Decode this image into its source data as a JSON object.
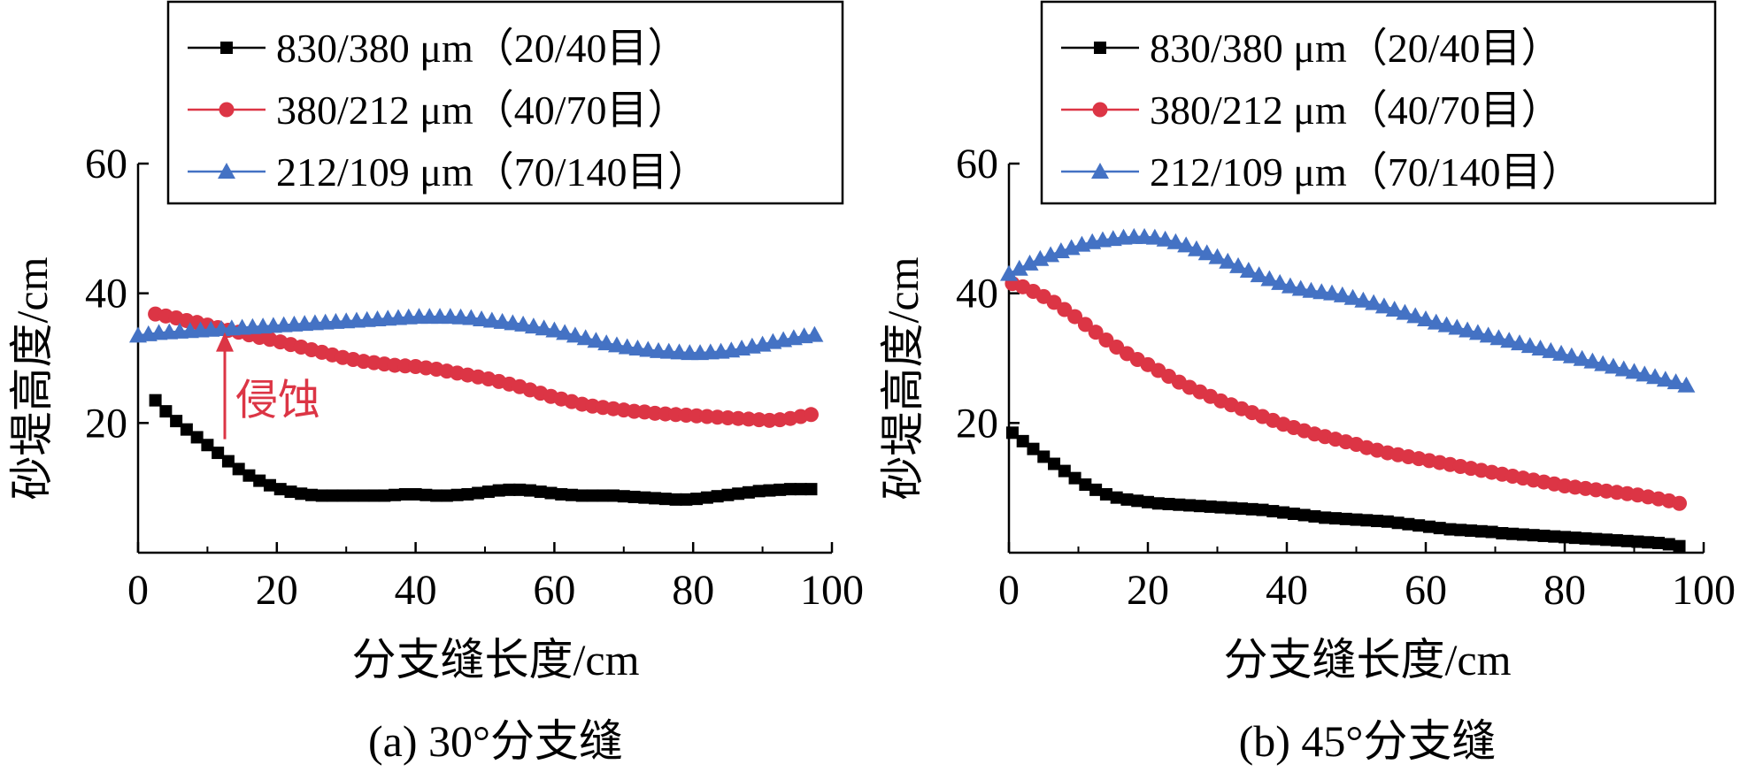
{
  "colors": {
    "series": [
      "#000000",
      "#dc3545",
      "#4472c4"
    ],
    "axis": "#000000",
    "annotation": "#dc3545"
  },
  "chart_data": [
    {
      "type": "line",
      "caption": "(a) 30°分支缝",
      "xlabel": "分支缝长度/cm",
      "ylabel": "砂堤高度/cm",
      "xlim": [
        0,
        100
      ],
      "ylim": [
        0,
        60
      ],
      "xticks": [
        0,
        20,
        40,
        60,
        80,
        100
      ],
      "yticks": [
        20,
        40,
        60
      ],
      "grid": false,
      "legend_position": "top-right",
      "annotation": {
        "text": "侵蚀",
        "x": 12.5,
        "y_from": 17.5,
        "y_to": 34
      },
      "series": [
        {
          "name": "830/380 μm（20/40目）",
          "marker": "square",
          "x": [
            2.5,
            4,
            5.5,
            7,
            8.5,
            10,
            11.5,
            13,
            14.5,
            16,
            17.5,
            19,
            20.5,
            22,
            23.5,
            25,
            26.5,
            28,
            29.5,
            31,
            32.5,
            34,
            35.5,
            37,
            38.5,
            40,
            41.5,
            43,
            44.5,
            46,
            47.5,
            49,
            50.5,
            52,
            53.5,
            55,
            56.5,
            58,
            59.5,
            61,
            62.5,
            64,
            65.5,
            67,
            68.5,
            70,
            71.5,
            73,
            74.5,
            76,
            77.5,
            79,
            80.5,
            82,
            83.5,
            85,
            86.5,
            88,
            89.5,
            91,
            92.5,
            94,
            95.5,
            97
          ],
          "y": [
            23.5,
            21.8,
            20.3,
            19,
            17.8,
            16.6,
            15.4,
            14.1,
            12.9,
            11.9,
            11.1,
            10.4,
            9.8,
            9.4,
            9.1,
            8.9,
            8.8,
            8.8,
            8.8,
            8.8,
            8.8,
            8.8,
            8.8,
            8.9,
            9,
            9,
            8.9,
            8.8,
            8.8,
            8.9,
            9,
            9.2,
            9.4,
            9.6,
            9.7,
            9.7,
            9.6,
            9.4,
            9.2,
            9,
            8.9,
            8.8,
            8.8,
            8.8,
            8.8,
            8.7,
            8.6,
            8.5,
            8.4,
            8.3,
            8.2,
            8.2,
            8.3,
            8.5,
            8.7,
            8.9,
            9.1,
            9.3,
            9.5,
            9.6,
            9.7,
            9.8,
            9.8,
            9.8
          ]
        },
        {
          "name": "380/212 μm（40/70目）",
          "marker": "circle",
          "x": [
            2.5,
            4,
            5.5,
            7,
            8.5,
            10,
            11.5,
            13,
            14.5,
            16,
            17.5,
            19,
            20.5,
            22,
            23.5,
            25,
            26.5,
            28,
            29.5,
            31,
            32.5,
            34,
            35.5,
            37,
            38.5,
            40,
            41.5,
            43,
            44.5,
            46,
            47.5,
            49,
            50.5,
            52,
            53.5,
            55,
            56.5,
            58,
            59.5,
            61,
            62.5,
            64,
            65.5,
            67,
            68.5,
            70,
            71.5,
            73,
            74.5,
            76,
            77.5,
            79,
            80.5,
            82,
            83.5,
            85,
            86.5,
            88,
            89.5,
            91,
            92.5,
            94,
            95.5,
            97
          ],
          "y": [
            36.8,
            36.5,
            36.2,
            35.8,
            35.5,
            35.1,
            34.7,
            34.3,
            34,
            33.6,
            33.2,
            32.9,
            32.5,
            32.1,
            31.7,
            31.3,
            30.9,
            30.5,
            30.1,
            29.8,
            29.5,
            29.3,
            29.1,
            28.9,
            28.8,
            28.7,
            28.5,
            28.3,
            28,
            27.7,
            27.4,
            27.1,
            26.8,
            26.4,
            26,
            25.6,
            25.1,
            24.6,
            24.1,
            23.7,
            23.3,
            22.9,
            22.6,
            22.4,
            22.2,
            22,
            21.8,
            21.7,
            21.5,
            21.4,
            21.3,
            21.2,
            21.1,
            21,
            20.9,
            20.8,
            20.7,
            20.6,
            20.5,
            20.4,
            20.5,
            20.7,
            21,
            21.3
          ]
        },
        {
          "name": "212/109 μm（70/140目）",
          "marker": "triangle",
          "x": [
            0,
            1.5,
            3,
            4.5,
            6,
            7.5,
            9,
            10.5,
            12,
            13.5,
            15,
            16.5,
            18,
            19.5,
            21,
            22.5,
            24,
            25.5,
            27,
            28.5,
            30,
            31.5,
            33,
            34.5,
            36,
            37.5,
            39,
            40.5,
            42,
            43.5,
            45,
            46.5,
            48,
            49.5,
            51,
            52.5,
            54,
            55.5,
            57,
            58.5,
            60,
            61.5,
            63,
            64.5,
            66,
            67.5,
            69,
            70.5,
            72,
            73.5,
            75,
            76.5,
            78,
            79.5,
            81,
            82.5,
            84,
            85.5,
            87,
            88.5,
            90,
            91.5,
            93,
            94.5,
            96,
            97.5
          ],
          "y": [
            33.5,
            33.7,
            33.9,
            34,
            34.1,
            34.2,
            34.3,
            34.4,
            34.5,
            34.6,
            34.7,
            34.8,
            34.9,
            35,
            35.1,
            35.2,
            35.3,
            35.4,
            35.5,
            35.6,
            35.7,
            35.8,
            35.9,
            36,
            36.1,
            36.2,
            36.3,
            36.4,
            36.4,
            36.4,
            36.4,
            36.3,
            36.2,
            36,
            35.8,
            35.6,
            35.4,
            35.2,
            34.9,
            34.6,
            34.3,
            33.9,
            33.5,
            33.1,
            32.7,
            32.3,
            32,
            31.7,
            31.5,
            31.3,
            31.1,
            31,
            30.9,
            30.8,
            30.8,
            30.9,
            31,
            31.2,
            31.5,
            31.8,
            32.1,
            32.5,
            32.8,
            33.1,
            33.4,
            33.6
          ]
        }
      ]
    },
    {
      "type": "line",
      "caption": "(b) 45°分支缝",
      "xlabel": "分支缝长度/cm",
      "ylabel": "砂堤高度/cm",
      "xlim": [
        0,
        100
      ],
      "ylim": [
        0,
        60
      ],
      "xticks": [
        0,
        20,
        40,
        60,
        80,
        100
      ],
      "yticks": [
        20,
        40,
        60
      ],
      "grid": false,
      "legend_position": "top-right",
      "series": [
        {
          "name": "830/380 μm（20/40目）",
          "marker": "square",
          "x": [
            0.5,
            2,
            3.5,
            5,
            6.5,
            8,
            9.5,
            11,
            12.5,
            14,
            15.5,
            17,
            18.5,
            20,
            21.5,
            23,
            24.5,
            26,
            27.5,
            29,
            30.5,
            32,
            33.5,
            35,
            36.5,
            38,
            39.5,
            41,
            42.5,
            44,
            45.5,
            47,
            48.5,
            50,
            51.5,
            53,
            54.5,
            56,
            57.5,
            59,
            60.5,
            62,
            63.5,
            65,
            66.5,
            68,
            69.5,
            71,
            72.5,
            74,
            75.5,
            77,
            78.5,
            80,
            81.5,
            83,
            84.5,
            86,
            87.5,
            89,
            90.5,
            92,
            93.5,
            95,
            96.5
          ],
          "y": [
            18.5,
            17.2,
            16,
            14.8,
            13.7,
            12.6,
            11.5,
            10.5,
            9.7,
            9,
            8.5,
            8.2,
            8,
            7.8,
            7.6,
            7.5,
            7.4,
            7.3,
            7.2,
            7.1,
            7,
            6.9,
            6.8,
            6.7,
            6.6,
            6.4,
            6.2,
            6,
            5.8,
            5.6,
            5.4,
            5.3,
            5.2,
            5.1,
            5,
            4.9,
            4.8,
            4.6,
            4.4,
            4.2,
            4,
            3.8,
            3.6,
            3.5,
            3.4,
            3.3,
            3.2,
            3,
            2.9,
            2.8,
            2.7,
            2.6,
            2.5,
            2.4,
            2.3,
            2.2,
            2.1,
            2,
            1.9,
            1.8,
            1.7,
            1.6,
            1.5,
            1.3,
            1
          ]
        },
        {
          "name": "380/212 μm（40/70目）",
          "marker": "circle",
          "x": [
            0.5,
            2,
            3.5,
            5,
            6.5,
            8,
            9.5,
            11,
            12.5,
            14,
            15.5,
            17,
            18.5,
            20,
            21.5,
            23,
            24.5,
            26,
            27.5,
            29,
            30.5,
            32,
            33.5,
            35,
            36.5,
            38,
            39.5,
            41,
            42.5,
            44,
            45.5,
            47,
            48.5,
            50,
            51.5,
            53,
            54.5,
            56,
            57.5,
            59,
            60.5,
            62,
            63.5,
            65,
            66.5,
            68,
            69.5,
            71,
            72.5,
            74,
            75.5,
            77,
            78.5,
            80,
            81.5,
            83,
            84.5,
            86,
            87.5,
            89,
            90.5,
            92,
            93.5,
            95,
            96.5
          ],
          "y": [
            41.5,
            41,
            40.3,
            39.5,
            38.6,
            37.5,
            36.4,
            35.2,
            34,
            32.8,
            31.7,
            30.7,
            29.8,
            29,
            28.1,
            27.2,
            26.3,
            25.5,
            24.8,
            24.1,
            23.4,
            22.8,
            22.2,
            21.6,
            21,
            20.4,
            19.8,
            19.3,
            18.8,
            18.3,
            17.9,
            17.5,
            17.1,
            16.7,
            16.2,
            15.8,
            15.4,
            15.1,
            14.8,
            14.5,
            14.2,
            13.9,
            13.6,
            13.3,
            13,
            12.7,
            12.4,
            12.1,
            11.8,
            11.5,
            11.2,
            10.9,
            10.6,
            10.3,
            10.1,
            9.9,
            9.7,
            9.5,
            9.3,
            9.1,
            8.9,
            8.6,
            8.3,
            8,
            7.6
          ]
        },
        {
          "name": "212/109 μm（70/140目）",
          "marker": "triangle",
          "x": [
            0,
            1.5,
            3,
            4.5,
            6,
            7.5,
            9,
            10.5,
            12,
            13.5,
            15,
            16.5,
            18,
            19.5,
            21,
            22.5,
            24,
            25.5,
            27,
            28.5,
            30,
            31.5,
            33,
            34.5,
            36,
            37.5,
            39,
            40.5,
            42,
            43.5,
            45,
            46.5,
            48,
            49.5,
            51,
            52.5,
            54,
            55.5,
            57,
            58.5,
            60,
            61.5,
            63,
            64.5,
            66,
            67.5,
            69,
            70.5,
            72,
            73.5,
            75,
            76.5,
            78,
            79.5,
            81,
            82.5,
            84,
            85.5,
            87,
            88.5,
            90,
            91.5,
            93,
            94.5,
            96,
            97.5
          ],
          "y": [
            43,
            43.8,
            44.6,
            45.3,
            45.9,
            46.5,
            47,
            47.5,
            47.9,
            48.2,
            48.4,
            48.6,
            48.7,
            48.7,
            48.6,
            48.3,
            47.9,
            47.4,
            46.8,
            46.2,
            45.6,
            44.9,
            44.2,
            43.5,
            42.8,
            42.2,
            41.6,
            41.1,
            40.7,
            40.4,
            40.2,
            40,
            39.7,
            39.3,
            38.9,
            38.5,
            38,
            37.5,
            37,
            36.5,
            36,
            35.5,
            35.1,
            34.7,
            34.3,
            33.9,
            33.5,
            33.1,
            32.7,
            32.3,
            31.9,
            31.5,
            31.1,
            30.7,
            30.3,
            29.9,
            29.5,
            29.1,
            28.7,
            28.3,
            27.9,
            27.5,
            27.1,
            26.7,
            26.3,
            25.8
          ]
        }
      ]
    }
  ]
}
